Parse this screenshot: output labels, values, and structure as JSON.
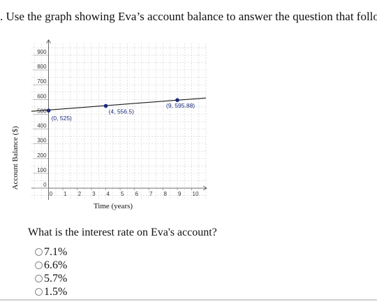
{
  "question": {
    "header": ". Use the graph showing Eva’s account balance to answer the question that follows.",
    "prompt": "What is the interest rate on Eva's account?",
    "choices": [
      {
        "label": "7.1%"
      },
      {
        "label": "6.6%"
      },
      {
        "label": "5.7%"
      },
      {
        "label": "1.5%"
      }
    ]
  },
  "chart_data": {
    "type": "line",
    "title": "",
    "xlabel": "Time (years)",
    "ylabel": "Account Balance ($)",
    "xlim": [
      -1.2,
      11
    ],
    "ylim": [
      -80,
      980
    ],
    "x_ticks": [
      0,
      1,
      2,
      3,
      4,
      5,
      6,
      7,
      8,
      9,
      10
    ],
    "y_ticks": [
      0,
      100,
      200,
      300,
      400,
      500,
      600,
      700,
      800,
      900
    ],
    "grid": true,
    "series": [
      {
        "color": "#1a1a1a",
        "line_x": [
          -1.2,
          11
        ],
        "line_y": [
          520,
          610
        ],
        "points": [
          {
            "x": 0,
            "y": 525,
            "label": "(0, 525)"
          },
          {
            "x": 4,
            "y": 556.5,
            "label": "(4, 556.5)"
          },
          {
            "x": 9,
            "y": 595.88,
            "label": "(9, 595.88)"
          }
        ]
      }
    ],
    "point_color": "#1a2a7a"
  }
}
